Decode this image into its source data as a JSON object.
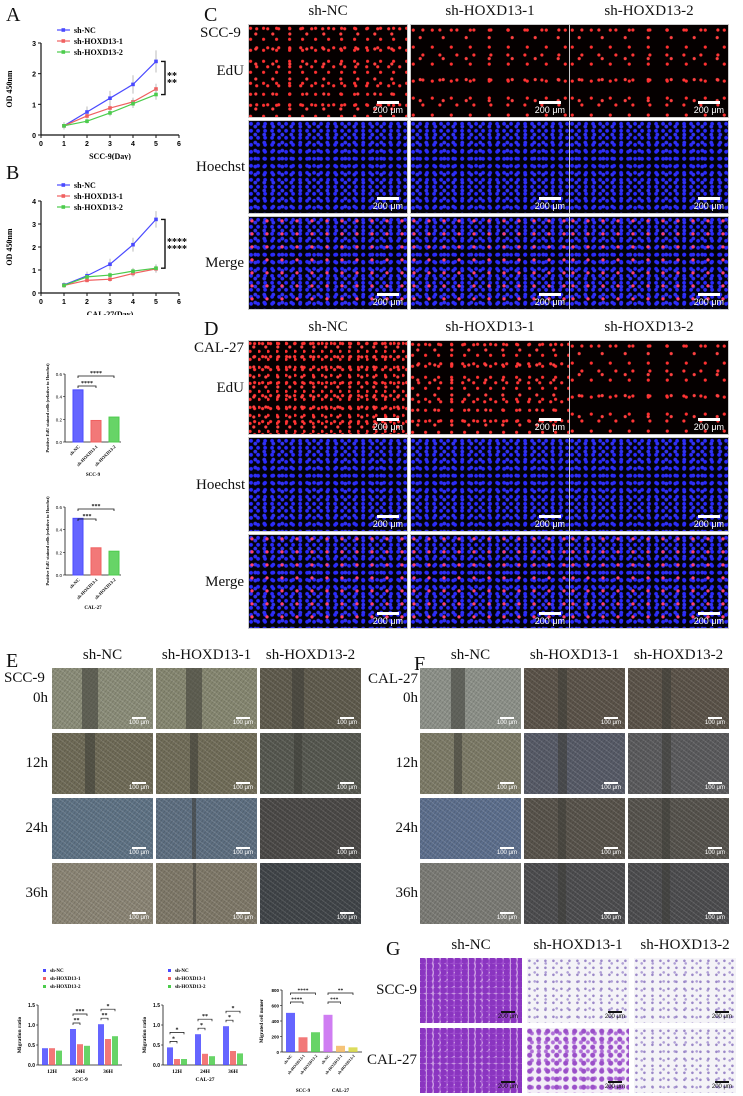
{
  "panels": {
    "A": {
      "letter": "A"
    },
    "B": {
      "letter": "B"
    },
    "C": {
      "letter": "C",
      "cell_line": "SCC-9",
      "columns": [
        "sh-NC",
        "sh-HOXD13-1",
        "sh-HOXD13-2"
      ],
      "rows": [
        "EdU",
        "Hoechst",
        "Merge"
      ],
      "scale_bar": "200 μm"
    },
    "D": {
      "letter": "D",
      "cell_line": "CAL-27",
      "columns": [
        "sh-NC",
        "sh-HOXD13-1",
        "sh-HOXD13-2"
      ],
      "rows": [
        "EdU",
        "Hoechst",
        "Merge"
      ],
      "scale_bar": "200 μm"
    },
    "E": {
      "letter": "E",
      "cell_line": "SCC-9",
      "columns": [
        "sh-NC",
        "sh-HOXD13-1",
        "sh-HOXD13-2"
      ],
      "rows": [
        "0h",
        "12h",
        "24h",
        "36h"
      ],
      "scale_bar": "100 μm"
    },
    "F": {
      "letter": "F",
      "cell_line": "CAL-27",
      "columns": [
        "sh-NC",
        "sh-HOXD13-1",
        "sh-HOXD13-2"
      ],
      "rows": [
        "0h",
        "12h",
        "24h",
        "36h"
      ],
      "scale_bar": "100 μm"
    },
    "G": {
      "letter": "G",
      "columns": [
        "sh-NC",
        "sh-HOXD13-1",
        "sh-HOXD13-2"
      ],
      "rows": [
        "SCC-9",
        "CAL-27"
      ],
      "scale_bar": "200 μm"
    }
  },
  "colors": {
    "sh_NC": "#4a4aff",
    "sh_HOXD13_1": "#f06060",
    "sh_HOXD13_2": "#4ccc4c",
    "CAL27_NC": "#c766f0",
    "CAL27_1": "#f5b860",
    "CAL27_2": "#d6d640"
  },
  "chart_data": [
    {
      "id": "A",
      "type": "line",
      "title": "",
      "xlabel": "SCC-9(Day)",
      "ylabel": "OD 450nm",
      "x": [
        1,
        2,
        3,
        4,
        5
      ],
      "xlim": [
        0,
        6
      ],
      "ylim": [
        0,
        3
      ],
      "xticks": [
        0,
        1,
        2,
        3,
        4,
        5,
        6
      ],
      "yticks": [
        0,
        1,
        2,
        3
      ],
      "series": [
        {
          "name": "sh-NC",
          "values": [
            0.3,
            0.75,
            1.2,
            1.65,
            2.4
          ]
        },
        {
          "name": "sh-HOXD13-1",
          "values": [
            0.3,
            0.62,
            0.88,
            1.08,
            1.5
          ]
        },
        {
          "name": "sh-HOXD13-2",
          "values": [
            0.3,
            0.45,
            0.72,
            1.02,
            1.32
          ]
        }
      ],
      "annotations": [
        "**",
        "**"
      ],
      "legend": "top-left",
      "grid": false
    },
    {
      "id": "B",
      "type": "line",
      "title": "",
      "xlabel": "CAL-27(Day)",
      "ylabel": "OD 450nm",
      "x": [
        1,
        2,
        3,
        4,
        5
      ],
      "xlim": [
        0,
        6
      ],
      "ylim": [
        0,
        4
      ],
      "xticks": [
        0,
        1,
        2,
        3,
        4,
        5,
        6
      ],
      "yticks": [
        0,
        1,
        2,
        3,
        4
      ],
      "series": [
        {
          "name": "sh-NC",
          "values": [
            0.35,
            0.75,
            1.25,
            2.1,
            3.2
          ]
        },
        {
          "name": "sh-HOXD13-1",
          "values": [
            0.33,
            0.55,
            0.6,
            0.85,
            1.05
          ]
        },
        {
          "name": "sh-HOXD13-2",
          "values": [
            0.33,
            0.7,
            0.78,
            0.95,
            1.08
          ]
        }
      ],
      "annotations": [
        "****",
        "****"
      ],
      "legend": "top-left",
      "grid": false
    },
    {
      "id": "C-quant",
      "type": "bar",
      "ylabel": "Positive EdU stained cells (relative to Hoechst)",
      "xlabel": "SCC-9",
      "categories": [
        "sh-NC",
        "sh-HOXD13-1",
        "sh-HOXD13-2"
      ],
      "values": [
        0.46,
        0.19,
        0.22
      ],
      "ylim": [
        0,
        0.6
      ],
      "yticks": [
        "0.0",
        "0.2",
        "0.4",
        "0.6"
      ],
      "annotations": [
        "****",
        "****"
      ]
    },
    {
      "id": "D-quant",
      "type": "bar",
      "ylabel": "Positive EdU stained cells (relative to Hoechst)",
      "xlabel": "CAL-27",
      "categories": [
        "sh-NC",
        "sh-HOXD13-1",
        "sh-HOXD13-2"
      ],
      "values": [
        0.5,
        0.24,
        0.21
      ],
      "ylim": [
        0,
        0.6
      ],
      "yticks": [
        "0.0",
        "0.2",
        "0.4",
        "0.6"
      ],
      "annotations": [
        "***",
        "***"
      ]
    },
    {
      "id": "E-quant",
      "type": "bar",
      "ylabel": "Migration ratio",
      "xlabel": "SCC-9",
      "categories": [
        "12H",
        "24H",
        "36H"
      ],
      "ylim": [
        0,
        1.5
      ],
      "yticks": [
        "0.0",
        "0.5",
        "1.0",
        "1.5"
      ],
      "series": [
        {
          "name": "sh-NC",
          "values": [
            0.42,
            0.9,
            1.02
          ]
        },
        {
          "name": "sh-HOXD13-1",
          "values": [
            0.42,
            0.52,
            0.65
          ]
        },
        {
          "name": "sh-HOXD13-2",
          "values": [
            0.36,
            0.48,
            0.72
          ]
        }
      ],
      "annotations": [
        {
          "group": "24H",
          "marks": [
            "**",
            "***"
          ]
        },
        {
          "group": "36H",
          "marks": [
            "**",
            "*"
          ]
        }
      ]
    },
    {
      "id": "F-quant",
      "type": "bar",
      "ylabel": "Migration ratio",
      "xlabel": "CAL-27",
      "categories": [
        "12H",
        "24H",
        "36H"
      ],
      "ylim": [
        0,
        1.5
      ],
      "yticks": [
        "0.0",
        "0.5",
        "1.0",
        "1.5"
      ],
      "series": [
        {
          "name": "sh-NC",
          "values": [
            0.44,
            0.77,
            0.97
          ]
        },
        {
          "name": "sh-HOXD13-1",
          "values": [
            0.15,
            0.28,
            0.35
          ]
        },
        {
          "name": "sh-HOXD13-2",
          "values": [
            0.15,
            0.22,
            0.29
          ]
        }
      ],
      "annotations": [
        {
          "group": "12H",
          "marks": [
            "*",
            "*"
          ]
        },
        {
          "group": "24H",
          "marks": [
            "*",
            "**"
          ]
        },
        {
          "group": "36H",
          "marks": [
            "*",
            "*"
          ]
        }
      ]
    },
    {
      "id": "G-quant",
      "type": "bar",
      "ylabel": "Migrated cell numer",
      "xlabel": "",
      "groups": [
        "SCC-9",
        "CAL-27"
      ],
      "categories": [
        "sh-NC",
        "sh-HOXD13-1",
        "sh-HOXD13-2",
        "sh-NC",
        "sh-HOXD13-1",
        "sh-HOXD13-2"
      ],
      "values": [
        505,
        190,
        255,
        480,
        80,
        60
      ],
      "ylim": [
        0,
        800
      ],
      "yticks": [
        "0",
        "200",
        "400",
        "600",
        "800"
      ],
      "annotations": [
        "****",
        "****",
        "***",
        "**"
      ]
    }
  ],
  "legend": [
    "sh-NC",
    "sh-HOXD13-1",
    "sh-HOXD13-2"
  ]
}
